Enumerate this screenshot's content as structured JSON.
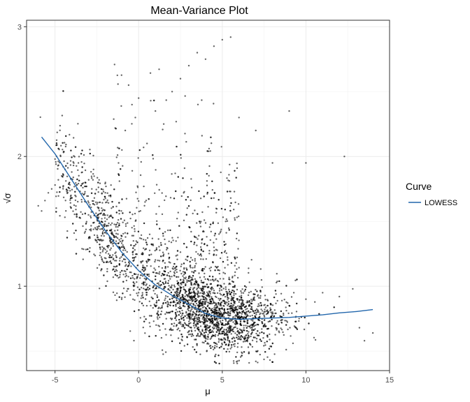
{
  "chart_data": {
    "type": "scatter",
    "title": "Mean-Variance Plot",
    "xlabel": "μ",
    "ylabel": "√σ",
    "xlim": [
      -6.7,
      15.0
    ],
    "ylim": [
      0.35,
      3.05
    ],
    "xticks": [
      -5,
      0,
      5,
      10,
      15
    ],
    "xtick_labels": [
      "-5",
      "0",
      "5",
      "10",
      "15"
    ],
    "yticks": [
      1,
      2,
      3
    ],
    "ytick_labels": [
      "1",
      "2",
      "3"
    ],
    "grid": true,
    "legend": {
      "title": "Curve",
      "position": "right",
      "entries": [
        "LOWESS"
      ]
    },
    "series": [
      {
        "kind": "points",
        "color": "#000000",
        "opacity": 0.6,
        "note": "dense point cloud of thousands of genes; representative estimated points",
        "points": [
          [
            -6.0,
            1.62
          ],
          [
            -5.8,
            1.58
          ],
          [
            -5.6,
            1.66
          ],
          [
            -5.4,
            1.72
          ],
          [
            -5.2,
            1.75
          ],
          [
            -5.0,
            1.78
          ],
          [
            -4.8,
            1.82
          ],
          [
            -4.6,
            1.85
          ],
          [
            -4.4,
            1.9
          ],
          [
            -4.2,
            1.76
          ],
          [
            -4.0,
            1.88
          ],
          [
            -3.8,
            1.7
          ],
          [
            -3.6,
            1.95
          ],
          [
            -3.4,
            1.65
          ],
          [
            -3.2,
            1.8
          ],
          [
            -3.0,
            1.55
          ],
          [
            -2.8,
            1.75
          ],
          [
            -2.6,
            1.45
          ],
          [
            -2.4,
            1.6
          ],
          [
            -2.2,
            1.35
          ],
          [
            -2.0,
            1.5
          ],
          [
            -1.8,
            1.25
          ],
          [
            -1.6,
            1.4
          ],
          [
            -1.4,
            1.15
          ],
          [
            -1.2,
            1.95
          ],
          [
            -1.0,
            2.05
          ],
          [
            -0.8,
            2.2
          ],
          [
            -0.6,
            2.55
          ],
          [
            -0.4,
            2.4
          ],
          [
            -0.2,
            2.3
          ],
          [
            0.0,
            2.45
          ],
          [
            0.5,
            2.1
          ],
          [
            1.0,
            2.35
          ],
          [
            1.5,
            2.25
          ],
          [
            2.0,
            2.5
          ],
          [
            2.5,
            2.6
          ],
          [
            3.0,
            2.7
          ],
          [
            3.5,
            2.8
          ],
          [
            4.0,
            2.75
          ],
          [
            4.5,
            2.85
          ],
          [
            5.0,
            2.9
          ],
          [
            5.5,
            2.92
          ],
          [
            6.0,
            2.3
          ],
          [
            7.0,
            2.2
          ],
          [
            8.0,
            1.95
          ],
          [
            9.0,
            2.35
          ],
          [
            10.0,
            1.95
          ],
          [
            12.3,
            2.0
          ],
          [
            0.0,
            0.95
          ],
          [
            1.0,
            0.85
          ],
          [
            2.0,
            0.75
          ],
          [
            3.0,
            0.65
          ],
          [
            4.0,
            0.6
          ],
          [
            5.0,
            0.55
          ],
          [
            6.0,
            0.6
          ],
          [
            7.0,
            0.7
          ],
          [
            8.0,
            0.8
          ],
          [
            9.0,
            0.85
          ],
          [
            10.0,
            0.9
          ],
          [
            11.0,
            0.95
          ],
          [
            12.0,
            0.92
          ],
          [
            12.8,
            0.98
          ],
          [
            13.5,
            0.58
          ],
          [
            14.0,
            0.64
          ]
        ]
      },
      {
        "kind": "line",
        "name": "LOWESS",
        "color": "#2166ac",
        "points": [
          [
            -5.8,
            2.15
          ],
          [
            -5.0,
            2.02
          ],
          [
            -4.0,
            1.82
          ],
          [
            -3.0,
            1.62
          ],
          [
            -2.0,
            1.43
          ],
          [
            -1.0,
            1.26
          ],
          [
            0.0,
            1.12
          ],
          [
            1.0,
            1.01
          ],
          [
            2.0,
            0.93
          ],
          [
            3.0,
            0.86
          ],
          [
            4.0,
            0.79
          ],
          [
            5.0,
            0.755
          ],
          [
            6.0,
            0.745
          ],
          [
            7.0,
            0.75
          ],
          [
            8.0,
            0.755
          ],
          [
            9.0,
            0.76
          ],
          [
            10.0,
            0.77
          ],
          [
            11.0,
            0.78
          ],
          [
            12.0,
            0.795
          ],
          [
            13.0,
            0.805
          ],
          [
            14.0,
            0.82
          ]
        ]
      }
    ]
  }
}
